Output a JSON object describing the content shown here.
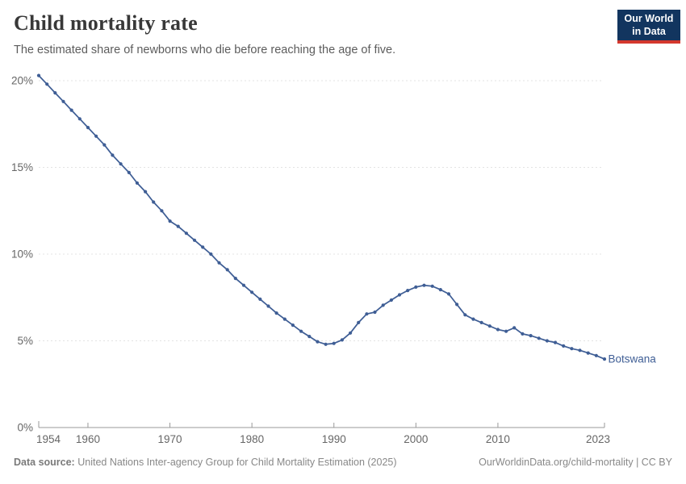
{
  "header": {
    "title": "Child mortality rate",
    "subtitle": "The estimated share of newborns who die before reaching the age of five.",
    "logo": {
      "line1": "Our World",
      "line2": "in Data",
      "bg_color": "#12355f",
      "accent_color": "#d4382d"
    }
  },
  "chart_data": {
    "type": "line",
    "title": "Child mortality rate",
    "xlabel": "",
    "ylabel": "",
    "xlim": [
      1954,
      2023
    ],
    "ylim": [
      0,
      20.4
    ],
    "grid": "horizontal-dashed",
    "x_ticks": [
      1954,
      1960,
      1970,
      1980,
      1990,
      2000,
      2010,
      2023
    ],
    "y_ticks": [
      0,
      5,
      10,
      15,
      20
    ],
    "y_tick_suffix": "%",
    "legend_position": "end-of-line-label",
    "series": [
      {
        "name": "Botswana",
        "color": "#3f5e95",
        "x": [
          1954,
          1955,
          1956,
          1957,
          1958,
          1959,
          1960,
          1961,
          1962,
          1963,
          1964,
          1965,
          1966,
          1967,
          1968,
          1969,
          1970,
          1971,
          1972,
          1973,
          1974,
          1975,
          1976,
          1977,
          1978,
          1979,
          1980,
          1981,
          1982,
          1983,
          1984,
          1985,
          1986,
          1987,
          1988,
          1989,
          1990,
          1991,
          1992,
          1993,
          1994,
          1995,
          1996,
          1997,
          1998,
          1999,
          2000,
          2001,
          2002,
          2003,
          2004,
          2005,
          2006,
          2007,
          2008,
          2009,
          2010,
          2011,
          2012,
          2013,
          2014,
          2015,
          2016,
          2017,
          2018,
          2019,
          2020,
          2021,
          2022,
          2023
        ],
        "y": [
          20.3,
          19.8,
          19.3,
          18.8,
          18.3,
          17.8,
          17.3,
          16.8,
          16.3,
          15.7,
          15.2,
          14.7,
          14.1,
          13.6,
          13.0,
          12.5,
          11.9,
          11.6,
          11.2,
          10.8,
          10.4,
          10.0,
          9.5,
          9.1,
          8.6,
          8.2,
          7.8,
          7.4,
          7.0,
          6.6,
          6.25,
          5.9,
          5.55,
          5.25,
          4.95,
          4.8,
          4.85,
          5.05,
          5.45,
          6.05,
          6.55,
          6.65,
          7.05,
          7.35,
          7.65,
          7.9,
          8.1,
          8.2,
          8.15,
          7.95,
          7.7,
          7.1,
          6.5,
          6.25,
          6.05,
          5.85,
          5.65,
          5.55,
          5.75,
          5.4,
          5.3,
          5.15,
          5.0,
          4.9,
          4.7,
          4.55,
          4.45,
          4.3,
          4.15,
          3.95
        ]
      }
    ],
    "colors": {
      "gridline": "#e3e3e3",
      "axis": "#999999",
      "tick_label": "#666666"
    }
  },
  "footer": {
    "source_label": "Data source:",
    "source_text": "United Nations Inter-agency Group for Child Mortality Estimation (2025)",
    "link_text": "OurWorldinData.org/child-mortality | CC BY"
  }
}
